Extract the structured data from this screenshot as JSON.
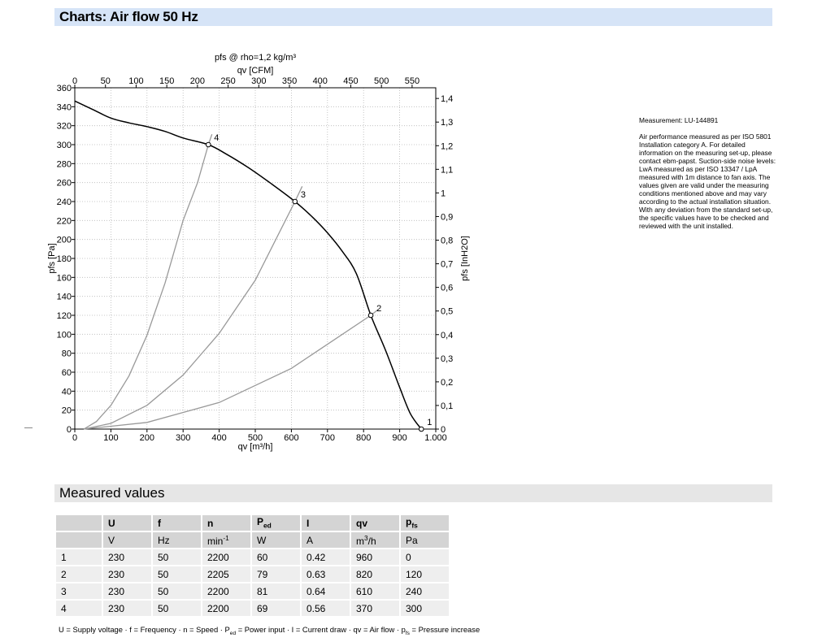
{
  "headers": {
    "chart": "Charts: Air flow 50 Hz",
    "measured": "Measured values"
  },
  "chart_data": {
    "type": "line",
    "title": "pfs @ rho=1,2 kg/m³",
    "top_axis_label": "qv [CFM]",
    "xlabel": "qv [m³/h]",
    "ylabel": "pfs [Pa]",
    "right_ylabel": "pfs [InH2O]",
    "xlim": [
      0,
      1000
    ],
    "ylim": [
      0,
      360
    ],
    "x_ticks": [
      "0",
      "100",
      "200",
      "300",
      "400",
      "500",
      "600",
      "700",
      "800",
      "900",
      "1.000"
    ],
    "y_ticks": [
      "0",
      "20",
      "40",
      "60",
      "80",
      "100",
      "120",
      "140",
      "160",
      "180",
      "200",
      "220",
      "240",
      "260",
      "280",
      "300",
      "320",
      "340",
      "360"
    ],
    "top_ticks": [
      "0",
      "50",
      "100",
      "150",
      "200",
      "250",
      "300",
      "350",
      "400",
      "450",
      "500",
      "550"
    ],
    "right_ticks": [
      "0",
      "0,1",
      "0,2",
      "0,3",
      "0,4",
      "0,5",
      "0,6",
      "0,7",
      "0,8",
      "0,9",
      "1",
      "1,1",
      "1,2",
      "1,3",
      "1,4"
    ],
    "grid": true,
    "series": [
      {
        "values_x": [
          0,
          50,
          100,
          150,
          200,
          250,
          300,
          370,
          420,
          480,
          540,
          610,
          660,
          700,
          740,
          780,
          820,
          860,
          900,
          930,
          960
        ],
        "values_y": [
          346,
          337,
          328,
          323,
          319,
          314,
          307,
          300,
          290,
          276,
          260,
          240,
          223,
          207,
          188,
          164,
          120,
          84,
          44,
          16,
          0
        ]
      }
    ],
    "system_curves": [
      {
        "x": [
          25,
          60,
          100,
          150,
          200,
          250,
          300,
          340,
          370,
          380
        ],
        "y": [
          0,
          8,
          25,
          56,
          99,
          154,
          220,
          260,
          300,
          311
        ]
      },
      {
        "x": [
          25,
          100,
          200,
          300,
          400,
          500,
          610,
          630
        ],
        "y": [
          0,
          6,
          25,
          57,
          101,
          157,
          240,
          256
        ]
      },
      {
        "x": [
          25,
          200,
          400,
          600,
          820,
          840
        ],
        "y": [
          0,
          7,
          28,
          64,
          120,
          126
        ]
      }
    ],
    "operating_points": [
      {
        "label": "1",
        "x": 960,
        "y": 0
      },
      {
        "label": "2",
        "x": 820,
        "y": 120
      },
      {
        "label": "3",
        "x": 610,
        "y": 240
      },
      {
        "label": "4",
        "x": 370,
        "y": 300
      }
    ]
  },
  "notes": {
    "measurement": "Measurement: LU-144891",
    "text": "Air performance measured as per ISO 5801 Installation category A. For detailed information on the measuring set-up, please contact ebm-papst. Suction-side noise levels: LwA measured as per ISO 13347 / LpA measured with 1m distance to fan axis. The values given are valid under the measuring conditions mentioned above and may vary according to the actual installation situation. With any deviation from the standard set-up, the specific values have to be checked and reviewed with the unit installed."
  },
  "table": {
    "headers": [
      "",
      "U",
      "f",
      "n",
      "P",
      "I",
      "qv",
      "p"
    ],
    "header_subs": [
      "",
      "",
      "",
      "",
      "ed",
      "",
      "",
      "fs"
    ],
    "units": [
      "",
      "V",
      "Hz",
      "min",
      "W",
      "A",
      "m",
      "Pa"
    ],
    "unit_sups": [
      "",
      "",
      "",
      "-1",
      "",
      "",
      "3",
      ""
    ],
    "unit_tails": [
      "",
      "",
      "",
      "",
      "",
      "",
      "/h",
      ""
    ],
    "rows": [
      [
        "1",
        "230",
        "50",
        "2200",
        "60",
        "0.42",
        "960",
        "0"
      ],
      [
        "2",
        "230",
        "50",
        "2205",
        "79",
        "0.63",
        "820",
        "120"
      ],
      [
        "3",
        "230",
        "50",
        "2200",
        "81",
        "0.64",
        "610",
        "240"
      ],
      [
        "4",
        "230",
        "50",
        "2200",
        "69",
        "0.56",
        "370",
        "300"
      ]
    ]
  },
  "legend": {
    "p1": "U = Supply voltage · f = Frequency · n = Speed · P",
    "s1": "ed",
    "p2": " = Power input · I = Current draw · qv = Air flow · p",
    "s2": "fs",
    "p3": " = Pressure increase"
  }
}
